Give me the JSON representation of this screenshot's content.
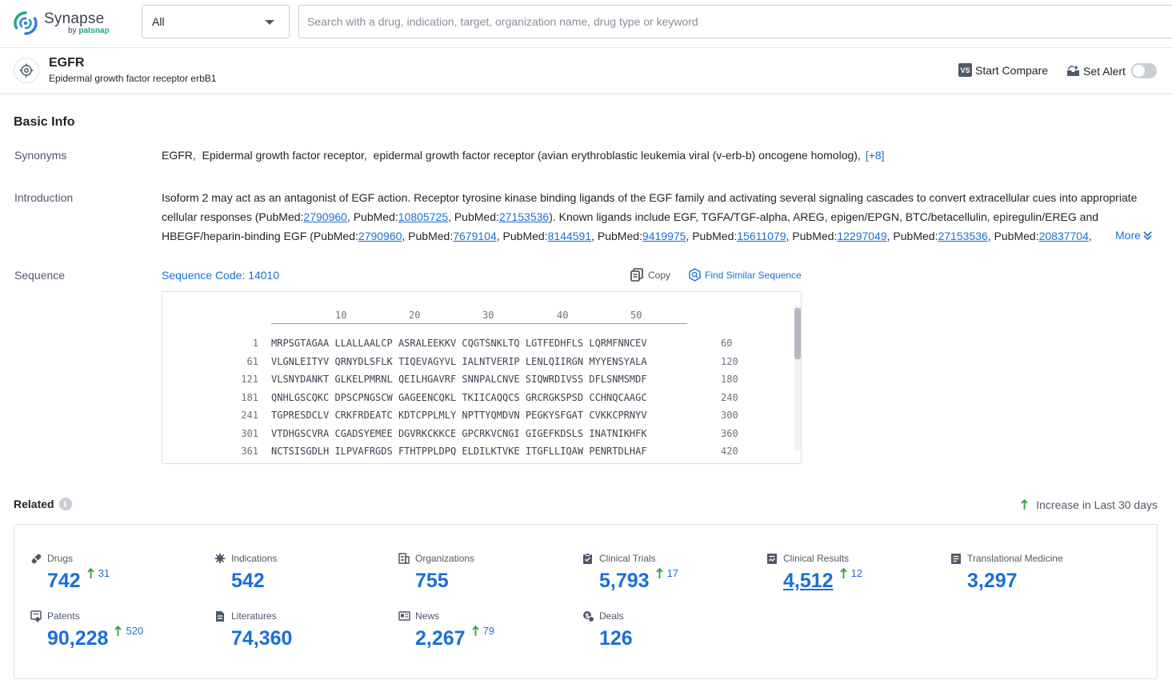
{
  "header": {
    "logo_name": "Synapse",
    "logo_by": "by",
    "logo_brand": "patsnap",
    "scope_value": "All",
    "search_placeholder": "Search with a drug, indication, target, organization name, drug type or keyword"
  },
  "target": {
    "name": "EGFR",
    "full_name": "Epidermal growth factor receptor erbB1",
    "compare_icon_text": "VS",
    "compare_label": "Start Compare",
    "alert_label": "Set Alert",
    "alert_enabled": false
  },
  "basic_info": {
    "title": "Basic Info",
    "synonyms_label": "Synonyms",
    "synonyms_text": "EGFR,  Epidermal growth factor receptor,  epidermal growth factor receptor (avian erythroblastic leukemia viral (v-erb-b) oncogene homolog),",
    "synonyms_more": "[+8]",
    "introduction_label": "Introduction",
    "intro_segments": [
      {
        "t": "Isoform 2 may act as an antagonist of EGF action. Receptor tyrosine kinase binding ligands of the EGF family and activating several signaling cascades to convert extracellular cues into appropriate cellular responses (PubMed:"
      },
      {
        "a": "2790960"
      },
      {
        "t": ", PubMed:"
      },
      {
        "a": "10805725"
      },
      {
        "t": ", PubMed:"
      },
      {
        "a": "27153536"
      },
      {
        "t": "). Known ligands include EGF, TGFA/TGF-alpha, AREG, epigen/EPGN, BTC/betacellulin, epiregulin/EREG and HBEGF/heparin-binding EGF (PubMed:"
      },
      {
        "a": "2790960"
      },
      {
        "t": ", PubMed:"
      },
      {
        "a": "7679104"
      },
      {
        "t": ", PubMed:"
      },
      {
        "a": "8144591"
      },
      {
        "t": ", PubMed:"
      },
      {
        "a": "9419975"
      },
      {
        "t": ", PubMed:"
      },
      {
        "a": "15611079"
      },
      {
        "t": ", PubMed:"
      },
      {
        "a": "12297049"
      },
      {
        "t": ", PubMed:"
      },
      {
        "a": "27153536"
      },
      {
        "t": ", PubMed:"
      },
      {
        "a": "20837704"
      },
      {
        "t": ","
      }
    ],
    "more_label": "More",
    "sequence_label": "Sequence",
    "sequence_code": "Sequence Code: 14010",
    "copy_label": "Copy",
    "find_similar_label": "Find Similar Sequence",
    "ruler_ticks": [
      "10",
      "20",
      "30",
      "40",
      "50"
    ],
    "sequence_lines": [
      {
        "start": "1",
        "residues": "MRPSGTAGAA LLALLAALCP ASRALEEKKV CQGTSNKLTQ LGTFEDHFLS LQRMFNNCEV",
        "end": "60"
      },
      {
        "start": "61",
        "residues": "VLGNLEITYV QRNYDLSFLK TIQEVAGYVL IALNTVERIP LENLQIIRGN MYYENSYALA",
        "end": "120"
      },
      {
        "start": "121",
        "residues": "VLSNYDANKT GLKELPMRNL QEILHGAVRF SNNPALCNVE SIQWRDIVSS DFLSNMSMDF",
        "end": "180"
      },
      {
        "start": "181",
        "residues": "QNHLGSCQKC DPSCPNGSCW GAGEENCQKL TKIICAQQCS GRCRGKSPSD CCHNQCAAGC",
        "end": "240"
      },
      {
        "start": "241",
        "residues": "TGPRESDCLV CRKFRDEATC KDTCPPLMLY NPTTYQMDVN PEGKYSFGAT CVKKCPRNYV",
        "end": "300"
      },
      {
        "start": "301",
        "residues": "VTDHGSCVRA CGADSYEMEE DGVRKCKKCE GPCRKVCNGI GIGEFKDSLS INATNIKHFK",
        "end": "360"
      },
      {
        "start": "361",
        "residues": "NCTSISGDLH ILPVAFRGDS FTHTPPLDPQ ELDILKTVKE ITGFLLIQAW PENRTDLHAF",
        "end": "420"
      }
    ]
  },
  "related": {
    "title": "Related",
    "info_glyph": "i",
    "legend_label": "Increase in Last 30 days",
    "stats": [
      {
        "key": "drugs",
        "label": "Drugs",
        "icon": "pill-icon",
        "value": "742",
        "increase": "31"
      },
      {
        "key": "indications",
        "label": "Indications",
        "icon": "virus-icon",
        "value": "542",
        "increase": ""
      },
      {
        "key": "organizations",
        "label": "Organizations",
        "icon": "building-icon",
        "value": "755",
        "increase": ""
      },
      {
        "key": "clinical_trials",
        "label": "Clinical Trials",
        "icon": "clipboard-icon",
        "value": "5,793",
        "increase": "17"
      },
      {
        "key": "clinical_results",
        "label": "Clinical Results",
        "icon": "results-icon",
        "value": "4,512",
        "increase": "12",
        "underlined": true
      },
      {
        "key": "translational_medicine",
        "label": "Translational Medicine",
        "icon": "report-icon",
        "value": "3,297",
        "increase": ""
      },
      {
        "key": "patents",
        "label": "Patents",
        "icon": "patent-icon",
        "value": "90,228",
        "increase": "520"
      },
      {
        "key": "literatures",
        "label": "Literatures",
        "icon": "document-icon",
        "value": "74,360",
        "increase": ""
      },
      {
        "key": "news",
        "label": "News",
        "icon": "newspaper-icon",
        "value": "2,267",
        "increase": "79"
      },
      {
        "key": "deals",
        "label": "Deals",
        "icon": "deal-icon",
        "value": "126",
        "increase": ""
      }
    ]
  },
  "colors": {
    "accent": "#1a6fd6",
    "increase_arrow": "#2e9e3e",
    "logo_green": "#1fa58c",
    "logo_blue": "#2f7de1"
  }
}
